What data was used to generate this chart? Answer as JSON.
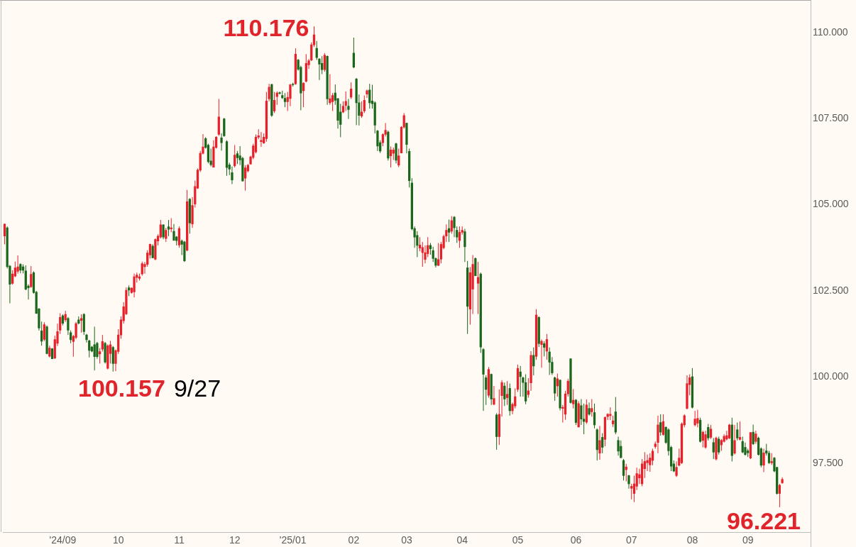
{
  "chart_data": {
    "type": "candlestick",
    "categories": [
      null,
      null,
      null,
      null,
      null,
      null,
      null,
      null,
      null,
      null,
      null,
      null,
      null,
      null,
      null,
      null,
      null,
      null,
      null,
      null,
      null,
      null,
      "'24/09",
      null,
      null,
      null,
      null,
      null,
      null,
      null,
      null,
      null,
      null,
      null,
      null,
      null,
      null,
      null,
      null,
      null,
      null,
      null,
      null,
      "10",
      null,
      null,
      null,
      null,
      null,
      null,
      null,
      null,
      null,
      null,
      null,
      null,
      null,
      null,
      null,
      null,
      null,
      null,
      null,
      null,
      null,
      null,
      "11",
      null,
      null,
      null,
      null,
      null,
      null,
      null,
      null,
      null,
      null,
      null,
      null,
      null,
      null,
      null,
      null,
      null,
      null,
      null,
      null,
      "12",
      null,
      null,
      null,
      null,
      null,
      null,
      null,
      null,
      null,
      null,
      null,
      null,
      null,
      null,
      null,
      null,
      null,
      null,
      null,
      null,
      null,
      "'25/01",
      null,
      null,
      null,
      null,
      null,
      null,
      null,
      null,
      null,
      null,
      null,
      null,
      null,
      null,
      null,
      null,
      null,
      null,
      null,
      null,
      null,
      null,
      "02",
      null,
      null,
      null,
      null,
      null,
      null,
      null,
      null,
      null,
      null,
      null,
      null,
      null,
      null,
      null,
      null,
      null,
      null,
      null,
      "03",
      null,
      null,
      null,
      null,
      null,
      null,
      null,
      null,
      null,
      null,
      null,
      null,
      null,
      null,
      null,
      null,
      null,
      null,
      null,
      null,
      "04",
      null,
      null,
      null,
      null,
      null,
      null,
      null,
      null,
      null,
      null,
      null,
      null,
      null,
      null,
      null,
      null,
      null,
      null,
      null,
      null,
      "05",
      null,
      null,
      null,
      null,
      null,
      null,
      null,
      null,
      null,
      null,
      null,
      null,
      null,
      null,
      null,
      null,
      null,
      null,
      null,
      null,
      null,
      "06",
      null,
      null,
      null,
      null,
      null,
      null,
      null,
      null,
      null,
      null,
      null,
      null,
      null,
      null,
      null,
      null,
      null,
      null,
      null,
      null,
      "07",
      null,
      null,
      null,
      null,
      null,
      null,
      null,
      null,
      null,
      null,
      null,
      null,
      null,
      null,
      null,
      null,
      null,
      null,
      null,
      null,
      null,
      null,
      "08",
      null,
      null,
      null,
      null,
      null,
      null,
      null,
      null,
      null,
      null,
      null,
      null,
      null,
      null,
      null,
      null,
      null,
      null,
      null,
      null,
      "09",
      null,
      null,
      null,
      null,
      null,
      null,
      null,
      null,
      null,
      null,
      null,
      null,
      null
    ],
    "ohlc": [
      [
        104.09,
        104.45,
        103.85,
        104.44
      ],
      [
        104.33,
        104.37,
        103.15,
        103.2
      ],
      [
        103.22,
        103.25,
        102.14,
        102.69
      ],
      [
        102.72,
        103.1,
        102.68,
        102.99
      ],
      [
        102.93,
        103.35,
        102.9,
        103.17
      ],
      [
        103.07,
        103.53,
        103.0,
        103.2
      ],
      [
        103.27,
        103.3,
        103.01,
        103.1
      ],
      [
        103.2,
        103.27,
        103.01,
        103.1
      ],
      [
        103.08,
        103.24,
        102.52,
        102.55
      ],
      [
        102.64,
        102.69,
        102.25,
        102.59
      ],
      [
        102.62,
        103.22,
        102.59,
        102.98
      ],
      [
        103.03,
        103.07,
        102.42,
        102.45
      ],
      [
        102.46,
        102.5,
        101.83,
        101.85
      ],
      [
        101.98,
        102.0,
        101.35,
        101.42
      ],
      [
        101.34,
        101.61,
        100.91,
        101.04
      ],
      [
        101.09,
        101.59,
        101.04,
        101.52
      ],
      [
        101.46,
        101.5,
        100.66,
        100.68
      ],
      [
        100.6,
        100.91,
        100.57,
        100.84
      ],
      [
        100.82,
        100.84,
        100.52,
        100.53
      ],
      [
        100.55,
        101.2,
        100.52,
        101.09
      ],
      [
        100.98,
        101.55,
        100.9,
        101.32
      ],
      [
        101.36,
        101.85,
        101.25,
        101.73
      ],
      [
        101.78,
        101.82,
        101.5,
        101.56
      ],
      [
        101.66,
        101.92,
        101.6,
        101.82
      ],
      [
        101.7,
        101.74,
        101.22,
        101.36
      ],
      [
        101.29,
        101.35,
        100.98,
        101.08
      ],
      [
        101.03,
        101.22,
        100.59,
        101.18
      ],
      [
        101.15,
        101.6,
        101.1,
        101.55
      ],
      [
        101.66,
        101.76,
        101.53,
        101.56
      ],
      [
        101.64,
        101.82,
        101.29,
        101.7
      ],
      [
        101.82,
        101.85,
        101.22,
        101.32
      ],
      [
        101.22,
        101.25,
        101.0,
        101.08
      ],
      [
        101.05,
        101.08,
        100.57,
        100.77
      ],
      [
        100.87,
        100.9,
        100.72,
        100.75
      ],
      [
        100.94,
        101.46,
        100.19,
        100.59
      ],
      [
        100.98,
        101.02,
        100.53,
        100.59
      ],
      [
        100.67,
        100.84,
        100.39,
        100.74
      ],
      [
        100.81,
        101.22,
        100.74,
        101.03
      ],
      [
        100.98,
        101.02,
        100.39,
        100.43
      ],
      [
        100.25,
        100.95,
        100.22,
        100.91
      ],
      [
        100.68,
        101.05,
        100.39,
        100.94
      ],
      [
        100.86,
        100.9,
        100.157,
        100.39
      ],
      [
        100.39,
        100.8,
        100.17,
        100.77
      ],
      [
        100.74,
        101.39,
        100.67,
        101.22
      ],
      [
        101.22,
        101.76,
        101.11,
        101.66
      ],
      [
        101.63,
        102.17,
        101.55,
        102.04
      ],
      [
        101.83,
        102.6,
        101.8,
        102.52
      ],
      [
        102.59,
        102.66,
        102.35,
        102.52
      ],
      [
        102.45,
        102.6,
        102.42,
        102.58
      ],
      [
        102.47,
        103.0,
        102.31,
        102.91
      ],
      [
        102.89,
        103.03,
        102.74,
        102.96
      ],
      [
        102.86,
        103.0,
        102.8,
        102.91
      ],
      [
        102.99,
        103.35,
        102.94,
        103.29
      ],
      [
        103.2,
        103.34,
        103.0,
        103.27
      ],
      [
        103.27,
        103.68,
        103.2,
        103.6
      ],
      [
        103.54,
        103.87,
        103.44,
        103.85
      ],
      [
        103.8,
        103.85,
        103.45,
        103.46
      ],
      [
        103.42,
        104.02,
        103.39,
        103.99
      ],
      [
        103.95,
        104.14,
        103.82,
        104.09
      ],
      [
        104.06,
        104.56,
        104.02,
        104.42
      ],
      [
        104.42,
        104.43,
        104.0,
        104.06
      ],
      [
        104.02,
        104.33,
        103.92,
        104.26
      ],
      [
        104.36,
        104.56,
        104.09,
        104.29
      ],
      [
        104.3,
        104.61,
        104.2,
        104.33
      ],
      [
        104.23,
        104.44,
        103.95,
        103.97
      ],
      [
        104.07,
        104.09,
        103.82,
        103.96
      ],
      [
        103.83,
        104.37,
        103.75,
        104.31
      ],
      [
        103.95,
        103.99,
        103.54,
        103.85
      ],
      [
        103.92,
        103.95,
        103.34,
        103.37
      ],
      [
        103.68,
        105.43,
        103.65,
        105.09
      ],
      [
        105.16,
        105.19,
        104.16,
        104.47
      ],
      [
        104.44,
        105.22,
        104.33,
        104.98
      ],
      [
        105.02,
        105.7,
        104.92,
        105.53
      ],
      [
        105.48,
        106.05,
        105.46,
        106.01
      ],
      [
        106.0,
        106.56,
        105.95,
        106.49
      ],
      [
        106.49,
        107.05,
        106.46,
        106.68
      ],
      [
        106.92,
        106.96,
        106.63,
        106.66
      ],
      [
        106.73,
        106.77,
        106.2,
        106.25
      ],
      [
        106.27,
        106.63,
        106.11,
        106.16
      ],
      [
        106.09,
        106.87,
        106.08,
        106.68
      ],
      [
        106.66,
        106.99,
        106.63,
        106.96
      ],
      [
        107.04,
        108.07,
        107.0,
        107.55
      ],
      [
        106.94,
        107.07,
        106.57,
        106.8
      ],
      [
        107.49,
        107.52,
        106.97,
        107.0
      ],
      [
        106.83,
        106.87,
        105.84,
        106.08
      ],
      [
        106.16,
        106.22,
        105.86,
        106.03
      ],
      [
        105.93,
        106.11,
        105.6,
        105.72
      ],
      [
        106.13,
        106.73,
        106.08,
        106.44
      ],
      [
        106.48,
        106.56,
        106.18,
        106.36
      ],
      [
        106.42,
        106.7,
        106.15,
        106.3
      ],
      [
        106.35,
        106.39,
        105.67,
        105.69
      ],
      [
        105.77,
        106.15,
        105.41,
        106.07
      ],
      [
        105.98,
        106.18,
        105.94,
        106.15
      ],
      [
        106.18,
        106.42,
        106.16,
        106.39
      ],
      [
        106.37,
        106.77,
        106.32,
        106.71
      ],
      [
        106.53,
        107.04,
        106.49,
        106.96
      ],
      [
        106.96,
        107.19,
        106.9,
        107.0
      ],
      [
        106.83,
        107.11,
        106.68,
        106.87
      ],
      [
        106.79,
        107.07,
        106.77,
        106.96
      ],
      [
        106.92,
        108.27,
        106.83,
        108.01
      ],
      [
        108.07,
        108.51,
        108.0,
        108.41
      ],
      [
        108.49,
        108.51,
        107.55,
        107.59
      ],
      [
        107.72,
        108.27,
        107.66,
        108.03
      ],
      [
        108.14,
        108.29,
        107.9,
        108.24
      ],
      [
        108.24,
        108.28,
        108.2,
        108.23
      ],
      [
        108.17,
        108.31,
        108.07,
        108.1
      ],
      [
        108.09,
        108.24,
        107.83,
        107.99
      ],
      [
        107.99,
        108.27,
        107.72,
        108.12
      ],
      [
        108.08,
        108.51,
        107.86,
        108.48
      ],
      [
        108.49,
        108.54,
        108.43,
        108.48
      ],
      [
        108.51,
        109.54,
        108.48,
        109.37
      ],
      [
        109.2,
        109.23,
        108.89,
        108.93
      ],
      [
        108.99,
        109.03,
        107.74,
        108.24
      ],
      [
        108.31,
        108.55,
        107.83,
        108.53
      ],
      [
        108.58,
        109.37,
        108.55,
        109.1
      ],
      [
        109.06,
        109.23,
        108.94,
        109.18
      ],
      [
        109.2,
        109.71,
        109.17,
        109.64
      ],
      [
        109.64,
        110.176,
        109.58,
        109.93
      ],
      [
        109.54,
        109.75,
        109.2,
        109.27
      ],
      [
        109.23,
        109.25,
        108.62,
        109.08
      ],
      [
        109.1,
        109.31,
        108.79,
        108.92
      ],
      [
        108.92,
        109.4,
        108.86,
        109.34
      ],
      [
        109.31,
        109.33,
        107.9,
        108.07
      ],
      [
        107.96,
        108.79,
        107.9,
        108.08
      ],
      [
        107.99,
        108.24,
        107.72,
        108.17
      ],
      [
        108.24,
        108.49,
        107.9,
        108.03
      ],
      [
        108.08,
        108.1,
        107.21,
        107.45
      ],
      [
        107.69,
        107.93,
        106.96,
        107.33
      ],
      [
        107.69,
        108.0,
        107.66,
        107.86
      ],
      [
        107.88,
        108.29,
        107.72,
        108.0
      ],
      [
        107.86,
        108.07,
        107.49,
        107.76
      ],
      [
        108.12,
        108.55,
        108.07,
        108.36
      ],
      [
        109.4,
        109.85,
        108.96,
        108.99
      ],
      [
        108.65,
        108.68,
        107.31,
        107.96
      ],
      [
        107.96,
        108.2,
        107.3,
        107.59
      ],
      [
        107.57,
        108.0,
        107.52,
        107.69
      ],
      [
        107.72,
        108.17,
        107.66,
        108.03
      ],
      [
        108.21,
        108.34,
        108.1,
        108.31
      ],
      [
        108.33,
        108.51,
        107.79,
        107.96
      ],
      [
        108.01,
        108.48,
        107.79,
        107.93
      ],
      [
        107.96,
        108.0,
        107.07,
        107.31
      ],
      [
        107.14,
        107.17,
        106.56,
        106.7
      ],
      [
        106.8,
        106.87,
        106.5,
        106.56
      ],
      [
        106.8,
        107.07,
        106.7,
        107.04
      ],
      [
        107.04,
        107.37,
        106.98,
        107.16
      ],
      [
        107.11,
        107.15,
        106.28,
        106.35
      ],
      [
        106.42,
        106.69,
        106.08,
        106.59
      ],
      [
        106.49,
        106.66,
        106.3,
        106.59
      ],
      [
        106.77,
        106.8,
        106.2,
        106.29
      ],
      [
        106.15,
        106.63,
        106.09,
        106.42
      ],
      [
        106.5,
        107.28,
        106.49,
        107.25
      ],
      [
        107.25,
        107.66,
        107.21,
        107.59
      ],
      [
        107.37,
        107.38,
        106.49,
        106.75
      ],
      [
        106.55,
        106.63,
        105.5,
        105.7
      ],
      [
        105.63,
        105.77,
        104.26,
        104.3
      ],
      [
        104.31,
        104.37,
        103.75,
        104.06
      ],
      [
        104.11,
        104.23,
        103.48,
        103.82
      ],
      [
        103.74,
        104.06,
        103.65,
        103.83
      ],
      [
        103.61,
        103.92,
        103.2,
        103.76
      ],
      [
        103.41,
        103.82,
        103.3,
        103.61
      ],
      [
        103.58,
        104.06,
        103.48,
        103.82
      ],
      [
        103.82,
        103.89,
        103.55,
        103.72
      ],
      [
        103.67,
        103.78,
        103.34,
        103.44
      ],
      [
        103.44,
        103.47,
        103.18,
        103.24
      ],
      [
        103.24,
        103.89,
        103.22,
        103.41
      ],
      [
        103.42,
        103.92,
        103.3,
        103.85
      ],
      [
        103.75,
        104.13,
        103.71,
        104.08
      ],
      [
        104.09,
        104.43,
        103.92,
        104.26
      ],
      [
        104.31,
        104.57,
        103.92,
        104.2
      ],
      [
        104.23,
        104.67,
        104.16,
        104.54
      ],
      [
        104.64,
        104.67,
        104.06,
        104.33
      ],
      [
        104.26,
        104.37,
        103.89,
        104.06
      ],
      [
        103.96,
        104.37,
        103.75,
        104.2
      ],
      [
        104.2,
        104.37,
        104.13,
        104.26
      ],
      [
        104.22,
        104.3,
        103.34,
        103.78
      ],
      [
        103.17,
        103.37,
        101.25,
        102.05
      ],
      [
        101.97,
        103.19,
        101.52,
        103.03
      ],
      [
        102.55,
        103.54,
        101.83,
        103.27
      ],
      [
        103.44,
        103.47,
        102.93,
        102.94
      ],
      [
        102.72,
        103.34,
        101.83,
        102.89
      ],
      [
        102.99,
        103.03,
        100.7,
        100.87
      ],
      [
        100.8,
        100.84,
        99.02,
        100.08
      ],
      [
        99.98,
        100.05,
        99.19,
        99.64
      ],
      [
        99.47,
        100.29,
        99.4,
        100.22
      ],
      [
        100.08,
        100.1,
        99.19,
        99.36
      ],
      [
        99.21,
        99.74,
        99.18,
        99.38
      ],
      [
        98.9,
        98.95,
        97.89,
        98.27
      ],
      [
        98.27,
        99.64,
        98.03,
        98.92
      ],
      [
        99.46,
        99.91,
        98.85,
        99.84
      ],
      [
        99.74,
        99.84,
        99.16,
        99.36
      ],
      [
        99.4,
        99.88,
        99.19,
        99.5
      ],
      [
        99.67,
        99.81,
        98.88,
        99.02
      ],
      [
        99.02,
        99.26,
        98.92,
        99.21
      ],
      [
        99.16,
        99.67,
        99.09,
        99.43
      ],
      [
        99.64,
        100.36,
        99.57,
        100.25
      ],
      [
        100.15,
        100.32,
        99.43,
        100.01
      ],
      [
        99.98,
        100.01,
        99.43,
        99.84
      ],
      [
        99.84,
        100.08,
        99.21,
        99.3
      ],
      [
        99.49,
        99.97,
        99.4,
        99.6
      ],
      [
        99.83,
        100.75,
        99.6,
        100.63
      ],
      [
        100.63,
        100.86,
        100.05,
        100.32
      ],
      [
        100.6,
        101.97,
        100.5,
        101.8
      ],
      [
        101.73,
        101.76,
        100.87,
        100.97
      ],
      [
        100.94,
        101.09,
        100.27,
        101.04
      ],
      [
        100.97,
        101.04,
        100.6,
        100.86
      ],
      [
        100.75,
        101.25,
        100.5,
        101.09
      ],
      [
        100.73,
        100.86,
        100.06,
        100.43
      ],
      [
        100.43,
        100.58,
        100.06,
        100.12
      ],
      [
        99.98,
        100.01,
        99.31,
        99.53
      ],
      [
        99.74,
        100.1,
        99.43,
        99.95
      ],
      [
        99.91,
        99.93,
        99.03,
        99.1
      ],
      [
        99.09,
        99.19,
        98.68,
        99.12
      ],
      [
        98.92,
        99.6,
        98.76,
        99.51
      ],
      [
        99.51,
        99.95,
        99.43,
        99.88
      ],
      [
        100.53,
        100.54,
        99.23,
        99.26
      ],
      [
        99.22,
        99.65,
        99.09,
        99.33
      ],
      [
        99.33,
        99.36,
        98.61,
        98.68
      ],
      [
        98.55,
        99.3,
        98.54,
        99.23
      ],
      [
        99.17,
        99.36,
        98.61,
        98.78
      ],
      [
        98.78,
        99.23,
        98.34,
        98.71
      ],
      [
        98.69,
        99.35,
        98.64,
        99.19
      ],
      [
        99.09,
        99.26,
        98.88,
        98.92
      ],
      [
        98.99,
        99.36,
        98.85,
        99.09
      ],
      [
        98.97,
        99.23,
        98.51,
        98.61
      ],
      [
        98.47,
        98.51,
        97.58,
        97.89
      ],
      [
        97.79,
        98.58,
        97.6,
        98.16
      ],
      [
        98.25,
        98.37,
        97.79,
        97.96
      ],
      [
        98.19,
        98.85,
        97.99,
        98.83
      ],
      [
        98.85,
        98.95,
        98.75,
        98.92
      ],
      [
        98.88,
        99.12,
        98.75,
        98.92
      ],
      [
        98.64,
        98.88,
        98.55,
        98.73
      ],
      [
        98.99,
        99.42,
        98.34,
        98.4
      ],
      [
        98.16,
        98.27,
        97.72,
        97.85
      ],
      [
        97.99,
        98.16,
        97.65,
        97.66
      ],
      [
        97.58,
        97.62,
        97.0,
        97.14
      ],
      [
        97.31,
        97.48,
        96.97,
        97.39
      ],
      [
        97.14,
        97.16,
        96.76,
        96.9
      ],
      [
        96.77,
        96.9,
        96.45,
        96.83
      ],
      [
        96.62,
        97.14,
        96.37,
        96.9
      ],
      [
        96.83,
        97.37,
        96.72,
        97.2
      ],
      [
        97.07,
        97.34,
        96.9,
        97.17
      ],
      [
        96.9,
        97.62,
        96.83,
        97.48
      ],
      [
        97.34,
        97.82,
        97.07,
        97.55
      ],
      [
        97.51,
        97.75,
        97.27,
        97.58
      ],
      [
        97.45,
        97.79,
        97.25,
        97.65
      ],
      [
        97.58,
        97.92,
        97.44,
        97.85
      ],
      [
        97.98,
        98.13,
        97.92,
        98.06
      ],
      [
        98.1,
        98.88,
        97.79,
        98.61
      ],
      [
        98.68,
        98.92,
        98.3,
        98.4
      ],
      [
        98.33,
        98.92,
        98.3,
        98.71
      ],
      [
        98.54,
        98.57,
        98.06,
        98.1
      ],
      [
        98.47,
        98.51,
        97.72,
        97.86
      ],
      [
        97.96,
        98.0,
        97.27,
        97.41
      ],
      [
        97.48,
        97.58,
        97.24,
        97.27
      ],
      [
        97.14,
        97.55,
        97.1,
        97.38
      ],
      [
        97.44,
        97.92,
        97.41,
        97.65
      ],
      [
        97.51,
        98.68,
        97.48,
        98.64
      ],
      [
        98.61,
        98.92,
        98.54,
        98.88
      ],
      [
        99.09,
        100.05,
        99.06,
        99.81
      ],
      [
        99.78,
        100.08,
        99.47,
        99.98
      ],
      [
        100.01,
        100.26,
        99.09,
        99.12
      ],
      [
        98.61,
        99.02,
        98.57,
        98.78
      ],
      [
        98.66,
        99.05,
        98.54,
        98.8
      ],
      [
        98.75,
        98.82,
        98.1,
        98.13
      ],
      [
        98.16,
        98.44,
        97.96,
        98.4
      ],
      [
        97.96,
        98.44,
        97.92,
        98.33
      ],
      [
        98.54,
        98.64,
        98.16,
        98.23
      ],
      [
        98.25,
        98.61,
        98.2,
        98.49
      ],
      [
        98.1,
        98.23,
        97.62,
        97.82
      ],
      [
        97.62,
        98.27,
        97.58,
        98.23
      ],
      [
        98.2,
        98.27,
        97.75,
        97.82
      ],
      [
        98.03,
        98.2,
        97.86,
        98.16
      ],
      [
        98.13,
        98.34,
        98.1,
        98.28
      ],
      [
        98.2,
        98.44,
        98.16,
        98.3
      ],
      [
        98.23,
        98.64,
        98.2,
        98.61
      ],
      [
        98.61,
        98.82,
        97.55,
        97.72
      ],
      [
        97.79,
        98.61,
        97.75,
        98.16
      ],
      [
        98.47,
        98.68,
        98.16,
        98.23
      ],
      [
        98.19,
        98.71,
        98.16,
        98.25
      ],
      [
        98.13,
        98.27,
        97.79,
        97.82
      ],
      [
        97.96,
        98.1,
        97.72,
        97.75
      ],
      [
        97.86,
        97.92,
        97.68,
        97.8
      ],
      [
        97.65,
        98.4,
        97.62,
        98.39
      ],
      [
        98.4,
        98.62,
        98.03,
        98.06
      ],
      [
        98.13,
        98.44,
        98.06,
        98.35
      ],
      [
        98.23,
        98.27,
        97.72,
        97.75
      ],
      [
        97.92,
        97.96,
        97.38,
        97.44
      ],
      [
        97.44,
        97.92,
        97.24,
        97.8
      ],
      [
        97.86,
        98.06,
        97.72,
        97.79
      ],
      [
        97.79,
        97.86,
        97.48,
        97.51
      ],
      [
        97.51,
        97.79,
        97.45,
        97.55
      ],
      [
        97.65,
        97.68,
        97.24,
        97.27
      ],
      [
        97.38,
        97.39,
        96.59,
        96.62
      ],
      [
        96.62,
        96.9,
        96.221,
        96.86
      ],
      [
        96.93,
        97.09,
        96.9,
        97.03
      ]
    ],
    "colors": [
      "#e8202a",
      "#1a661a",
      "#1a661a",
      "#e8202a",
      "#e8202a",
      "#e8202a",
      "#1a661a",
      "#1a661a",
      "#1a661a",
      "#1a661a",
      "#e8202a",
      "#1a661a",
      "#1a661a",
      "#1a661a",
      "#1a661a",
      "#e8202a",
      "#1a661a",
      "#e8202a",
      "#1a661a",
      "#e8202a",
      "#e8202a",
      "#e8202a",
      "#1a661a",
      "#e8202a",
      "#1a661a",
      "#1a661a",
      "#e8202a",
      "#e8202a",
      "#1a661a",
      "#e8202a",
      "#1a661a",
      "#1a661a",
      "#1a661a",
      "#1a661a",
      "#1a661a",
      "#1a661a",
      "#e8202a",
      "#e8202a",
      "#1a661a",
      "#e8202a",
      "#e8202a",
      "#1a661a",
      "#e8202a",
      "#e8202a",
      "#e8202a",
      "#e8202a",
      "#e8202a",
      "#1a661a",
      "#e8202a",
      "#e8202a",
      "#e8202a",
      "#e8202a",
      "#e8202a",
      "#e8202a",
      "#e8202a",
      "#e8202a",
      "#1a661a",
      "#e8202a",
      "#e8202a",
      "#e8202a",
      "#1a661a",
      "#e8202a",
      "#1a661a",
      "#e8202a",
      "#1a661a",
      "#1a661a",
      "#e8202a",
      "#1a661a",
      "#1a661a",
      "#e8202a",
      "#1a661a",
      "#e8202a",
      "#e8202a",
      "#e8202a",
      "#e8202a",
      "#e8202a",
      "#1a661a",
      "#1a661a",
      "#1a661a",
      "#e8202a",
      "#e8202a",
      "#e8202a",
      "#1a661a",
      "#1a661a",
      "#1a661a",
      "#1a661a",
      "#1a661a",
      "#e8202a",
      "#1a661a",
      "#1a661a",
      "#1a661a",
      "#e8202a",
      "#e8202a",
      "#e8202a",
      "#e8202a",
      "#e8202a",
      "#e8202a",
      "#e8202a",
      "#e8202a",
      "#e8202a",
      "#e8202a",
      "#1a661a",
      "#e8202a",
      "#e8202a",
      "#1a661a",
      "#1a661a",
      "#1a661a",
      "#e8202a",
      "#e8202a",
      "#1a661a",
      "#e8202a",
      "#1a661a",
      "#1a661a",
      "#e8202a",
      "#e8202a",
      "#e8202a",
      "#e8202a",
      "#e8202a",
      "#1a661a",
      "#1a661a",
      "#1a661a",
      "#e8202a",
      "#1a661a",
      "#e8202a",
      "#e8202a",
      "#1a661a",
      "#1a661a",
      "#1a661a",
      "#e8202a",
      "#e8202a",
      "#1a661a",
      "#e8202a",
      "#1a661a",
      "#1a661a",
      "#1a661a",
      "#e8202a",
      "#e8202a",
      "#e8202a",
      "#1a661a",
      "#1a661a",
      "#1a661a",
      "#1a661a",
      "#1a661a",
      "#e8202a",
      "#e8202a",
      "#1a661a",
      "#e8202a",
      "#e8202a",
      "#1a661a",
      "#e8202a",
      "#e8202a",
      "#e8202a",
      "#1a661a",
      "#1a661a",
      "#1a661a",
      "#1a661a",
      "#1a661a",
      "#e8202a",
      "#e8202a",
      "#e8202a",
      "#e8202a",
      "#1a661a",
      "#1a661a",
      "#1a661a",
      "#e8202a",
      "#e8202a",
      "#e8202a",
      "#e8202a",
      "#1a661a",
      "#e8202a",
      "#1a661a",
      "#1a661a",
      "#e8202a",
      "#e8202a",
      "#1a661a",
      "#1a661a",
      "#e8202a",
      "#e8202a",
      "#1a661a",
      "#e8202a",
      "#1a661a",
      "#1a661a",
      "#1a661a",
      "#e8202a",
      "#1a661a",
      "#e8202a",
      "#1a661a",
      "#e8202a",
      "#e8202a",
      "#1a661a",
      "#e8202a",
      "#1a661a",
      "#e8202a",
      "#e8202a",
      "#e8202a",
      "#1a661a",
      "#1a661a",
      "#1a661a",
      "#e8202a",
      "#e8202a",
      "#1a661a",
      "#e8202a",
      "#1a661a",
      "#e8202a",
      "#1a661a",
      "#e8202a",
      "#1a661a",
      "#1a661a",
      "#1a661a",
      "#e8202a",
      "#1a661a",
      "#e8202a",
      "#e8202a",
      "#e8202a",
      "#1a661a",
      "#e8202a",
      "#1a661a",
      "#e8202a",
      "#1a661a",
      "#1a661a",
      "#e8202a",
      "#1a661a",
      "#e8202a",
      "#1a661a",
      "#1a661a",
      "#e8202a",
      "#1a661a",
      "#e8202a",
      "#e8202a",
      "#e8202a",
      "#e8202a",
      "#1a661a",
      "#1a661a",
      "#1a661a",
      "#1a661a",
      "#e8202a",
      "#1a661a",
      "#e8202a",
      "#e8202a",
      "#e8202a",
      "#e8202a",
      "#e8202a",
      "#e8202a",
      "#e8202a",
      "#e8202a",
      "#e8202a",
      "#e8202a",
      "#e8202a",
      "#1a661a",
      "#e8202a",
      "#1a661a",
      "#1a661a",
      "#1a661a",
      "#1a661a",
      "#e8202a",
      "#e8202a",
      "#e8202a",
      "#e8202a",
      "#e8202a",
      "#e8202a",
      "#1a661a",
      "#e8202a",
      "#e8202a",
      "#1a661a",
      "#e8202a",
      "#e8202a",
      "#1a661a",
      "#e8202a",
      "#1a661a",
      "#e8202a",
      "#1a661a",
      "#e8202a",
      "#e8202a",
      "#e8202a",
      "#e8202a",
      "#1a661a",
      "#e8202a",
      "#1a661a",
      "#e8202a",
      "#1a661a",
      "#1a661a",
      "#1a661a",
      "#e8202a",
      "#1a661a",
      "#e8202a",
      "#1a661a",
      "#1a661a",
      "#e8202a",
      "#1a661a",
      "#1a661a",
      "#e8202a",
      "#1a661a",
      "#1a661a",
      "#e8202a",
      "#e8202a"
    ],
    "ylim": [
      95.5,
      110.9
    ],
    "yticks": [
      {
        "value": 97.5,
        "label": "97.500"
      },
      {
        "value": 100,
        "label": "100.000"
      },
      {
        "value": 102.5,
        "label": "102.500"
      },
      {
        "value": 105,
        "label": "105.000"
      },
      {
        "value": 107.5,
        "label": "107.500"
      },
      {
        "value": 110,
        "label": "110.000"
      }
    ],
    "annotations": [
      "110.176",
      "100.157",
      "9/27",
      "96.221"
    ]
  }
}
